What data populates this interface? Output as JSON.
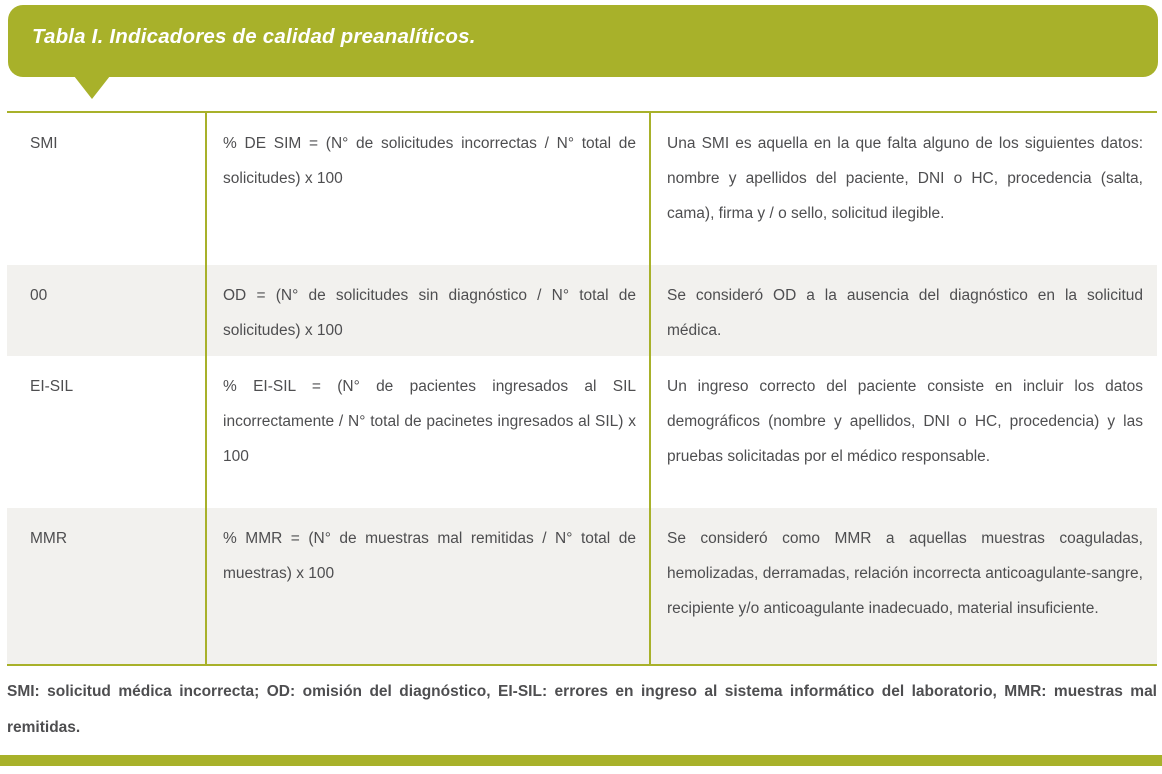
{
  "title": "Tabla I. Indicadores de calidad preanalíticos.",
  "colors": {
    "accent_olive": "#a8b12a",
    "row_alt_background": "#f2f1ee",
    "body_text": "#4e4e50",
    "title_text": "#ffffff"
  },
  "table": {
    "rows": [
      {
        "indicator": "SMI",
        "formula": "% DE SIM = (N° de solicitudes incorrectas / N° total de solicitudes) x 100",
        "description": "Una SMI es aquella en la que falta alguno de los siguientes datos: nombre y apellidos del paciente, DNI o HC, procedencia (salta, cama), firma y / o sello, solicitud ilegible."
      },
      {
        "indicator": "00",
        "formula": "OD = (N° de solicitudes sin diagnóstico / N° total de solicitudes) x 100",
        "description": "Se consideró OD a la ausencia del diagnóstico en la solicitud médica."
      },
      {
        "indicator": "EI-SIL",
        "formula": "% EI-SIL = (N° de pacientes ingresados al SIL incorrectamente / N° total de pacinetes ingresados al SIL) x 100",
        "description": "Un ingreso correcto del paciente consiste en incluir los datos demográficos (nombre y apellidos, DNI o HC, procedencia) y las pruebas solicitadas por el médico responsable."
      },
      {
        "indicator": "MMR",
        "formula": "% MMR = (N° de muestras mal remitidas / N° total de muestras) x 100",
        "description": "Se consideró como MMR a aquellas muestras coaguladas, hemolizadas, derramadas, relación incorrecta anticoagulante-sangre, recipiente y/o anticoagulante inadecuado, material insuficiente."
      }
    ]
  },
  "footnote": "SMI: solicitud médica incorrecta; OD: omisión del diagnóstico, EI-SIL: errores en ingreso al sistema informático del laboratorio, MMR: muestras mal remitidas."
}
